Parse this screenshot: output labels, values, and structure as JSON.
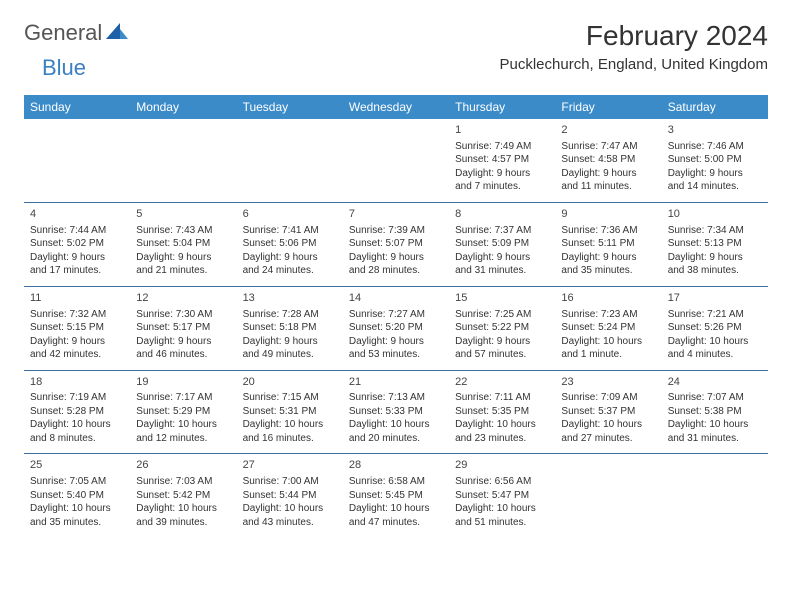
{
  "logo": {
    "part1": "General",
    "part2": "Blue"
  },
  "title": "February 2024",
  "subtitle": "Pucklechurch, England, United Kingdom",
  "colors": {
    "header_bg": "#3b8bc9",
    "header_text": "#ffffff",
    "row_border": "#3b6fa0",
    "logo_blue": "#3b7fc4",
    "text": "#333333",
    "background": "#ffffff"
  },
  "typography": {
    "title_fontsize": 28,
    "subtitle_fontsize": 15,
    "dayheader_fontsize": 12,
    "cell_fontsize": 10
  },
  "day_headers": [
    "Sunday",
    "Monday",
    "Tuesday",
    "Wednesday",
    "Thursday",
    "Friday",
    "Saturday"
  ],
  "weeks": [
    [
      null,
      null,
      null,
      null,
      {
        "n": "1",
        "sunrise": "7:49 AM",
        "sunset": "4:57 PM",
        "daylight": "9 hours and 7 minutes."
      },
      {
        "n": "2",
        "sunrise": "7:47 AM",
        "sunset": "4:58 PM",
        "daylight": "9 hours and 11 minutes."
      },
      {
        "n": "3",
        "sunrise": "7:46 AM",
        "sunset": "5:00 PM",
        "daylight": "9 hours and 14 minutes."
      }
    ],
    [
      {
        "n": "4",
        "sunrise": "7:44 AM",
        "sunset": "5:02 PM",
        "daylight": "9 hours and 17 minutes."
      },
      {
        "n": "5",
        "sunrise": "7:43 AM",
        "sunset": "5:04 PM",
        "daylight": "9 hours and 21 minutes."
      },
      {
        "n": "6",
        "sunrise": "7:41 AM",
        "sunset": "5:06 PM",
        "daylight": "9 hours and 24 minutes."
      },
      {
        "n": "7",
        "sunrise": "7:39 AM",
        "sunset": "5:07 PM",
        "daylight": "9 hours and 28 minutes."
      },
      {
        "n": "8",
        "sunrise": "7:37 AM",
        "sunset": "5:09 PM",
        "daylight": "9 hours and 31 minutes."
      },
      {
        "n": "9",
        "sunrise": "7:36 AM",
        "sunset": "5:11 PM",
        "daylight": "9 hours and 35 minutes."
      },
      {
        "n": "10",
        "sunrise": "7:34 AM",
        "sunset": "5:13 PM",
        "daylight": "9 hours and 38 minutes."
      }
    ],
    [
      {
        "n": "11",
        "sunrise": "7:32 AM",
        "sunset": "5:15 PM",
        "daylight": "9 hours and 42 minutes."
      },
      {
        "n": "12",
        "sunrise": "7:30 AM",
        "sunset": "5:17 PM",
        "daylight": "9 hours and 46 minutes."
      },
      {
        "n": "13",
        "sunrise": "7:28 AM",
        "sunset": "5:18 PM",
        "daylight": "9 hours and 49 minutes."
      },
      {
        "n": "14",
        "sunrise": "7:27 AM",
        "sunset": "5:20 PM",
        "daylight": "9 hours and 53 minutes."
      },
      {
        "n": "15",
        "sunrise": "7:25 AM",
        "sunset": "5:22 PM",
        "daylight": "9 hours and 57 minutes."
      },
      {
        "n": "16",
        "sunrise": "7:23 AM",
        "sunset": "5:24 PM",
        "daylight": "10 hours and 1 minute."
      },
      {
        "n": "17",
        "sunrise": "7:21 AM",
        "sunset": "5:26 PM",
        "daylight": "10 hours and 4 minutes."
      }
    ],
    [
      {
        "n": "18",
        "sunrise": "7:19 AM",
        "sunset": "5:28 PM",
        "daylight": "10 hours and 8 minutes."
      },
      {
        "n": "19",
        "sunrise": "7:17 AM",
        "sunset": "5:29 PM",
        "daylight": "10 hours and 12 minutes."
      },
      {
        "n": "20",
        "sunrise": "7:15 AM",
        "sunset": "5:31 PM",
        "daylight": "10 hours and 16 minutes."
      },
      {
        "n": "21",
        "sunrise": "7:13 AM",
        "sunset": "5:33 PM",
        "daylight": "10 hours and 20 minutes."
      },
      {
        "n": "22",
        "sunrise": "7:11 AM",
        "sunset": "5:35 PM",
        "daylight": "10 hours and 23 minutes."
      },
      {
        "n": "23",
        "sunrise": "7:09 AM",
        "sunset": "5:37 PM",
        "daylight": "10 hours and 27 minutes."
      },
      {
        "n": "24",
        "sunrise": "7:07 AM",
        "sunset": "5:38 PM",
        "daylight": "10 hours and 31 minutes."
      }
    ],
    [
      {
        "n": "25",
        "sunrise": "7:05 AM",
        "sunset": "5:40 PM",
        "daylight": "10 hours and 35 minutes."
      },
      {
        "n": "26",
        "sunrise": "7:03 AM",
        "sunset": "5:42 PM",
        "daylight": "10 hours and 39 minutes."
      },
      {
        "n": "27",
        "sunrise": "7:00 AM",
        "sunset": "5:44 PM",
        "daylight": "10 hours and 43 minutes."
      },
      {
        "n": "28",
        "sunrise": "6:58 AM",
        "sunset": "5:45 PM",
        "daylight": "10 hours and 47 minutes."
      },
      {
        "n": "29",
        "sunrise": "6:56 AM",
        "sunset": "5:47 PM",
        "daylight": "10 hours and 51 minutes."
      },
      null,
      null
    ]
  ],
  "labels": {
    "sunrise": "Sunrise:",
    "sunset": "Sunset:",
    "daylight": "Daylight:"
  }
}
